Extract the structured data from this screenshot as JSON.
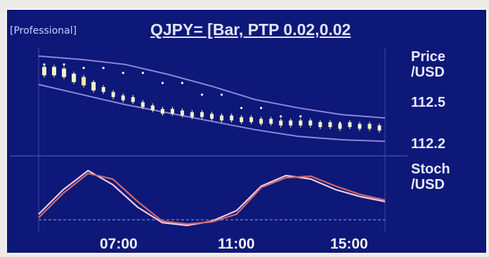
{
  "header": {
    "prefix": "[Professional]",
    "title": "QJPY= [Bar, PTP 0.02,0.02"
  },
  "panels": {
    "price_label_line1": "Price",
    "price_label_line2": "/USD",
    "stoch_label_line1": "Stoch",
    "stoch_label_line2": "/USD"
  },
  "colors": {
    "background": "#0d1878",
    "candle": "#f4f2c6",
    "band": "#8f86d8",
    "dots": "#ffffff",
    "stoch_k": "#f2c9e8",
    "stoch_d": "#ce6a6a"
  },
  "chart_data": [
    {
      "type": "line",
      "title": "",
      "xlabel": "",
      "ylabel": "Price/USD",
      "y_ticks": [
        "112.5",
        "112.2"
      ],
      "x_ticks": [
        "07:00",
        "11:00",
        "15:00"
      ],
      "candles": [
        112.64,
        112.64,
        112.63,
        112.6,
        112.58,
        112.55,
        112.53,
        112.5,
        112.48,
        112.47,
        112.44,
        112.42,
        112.4,
        112.4,
        112.39,
        112.38,
        112.38,
        112.37,
        112.36,
        112.36,
        112.35,
        112.35,
        112.34,
        112.34,
        112.33,
        112.33,
        112.33,
        112.33,
        112.32,
        112.32,
        112.31,
        112.32,
        112.31,
        112.31,
        112.3
      ],
      "band_upper": [
        112.73,
        112.71,
        112.68,
        112.62,
        112.55,
        112.47,
        112.42,
        112.38,
        112.36
      ],
      "band_lower": [
        112.56,
        112.5,
        112.44,
        112.39,
        112.34,
        112.29,
        112.25,
        112.23,
        112.22
      ],
      "grid": false
    },
    {
      "type": "line",
      "title": "",
      "ylabel": "Stoch/USD",
      "series": [
        {
          "values": [
            20,
            55,
            82,
            62,
            30,
            8,
            4,
            10,
            25,
            60,
            75,
            70,
            55,
            45,
            38
          ]
        },
        {
          "values": [
            15,
            50,
            78,
            70,
            38,
            10,
            6,
            9,
            20,
            58,
            72,
            74,
            60,
            48,
            40
          ]
        }
      ],
      "grid": false
    }
  ]
}
